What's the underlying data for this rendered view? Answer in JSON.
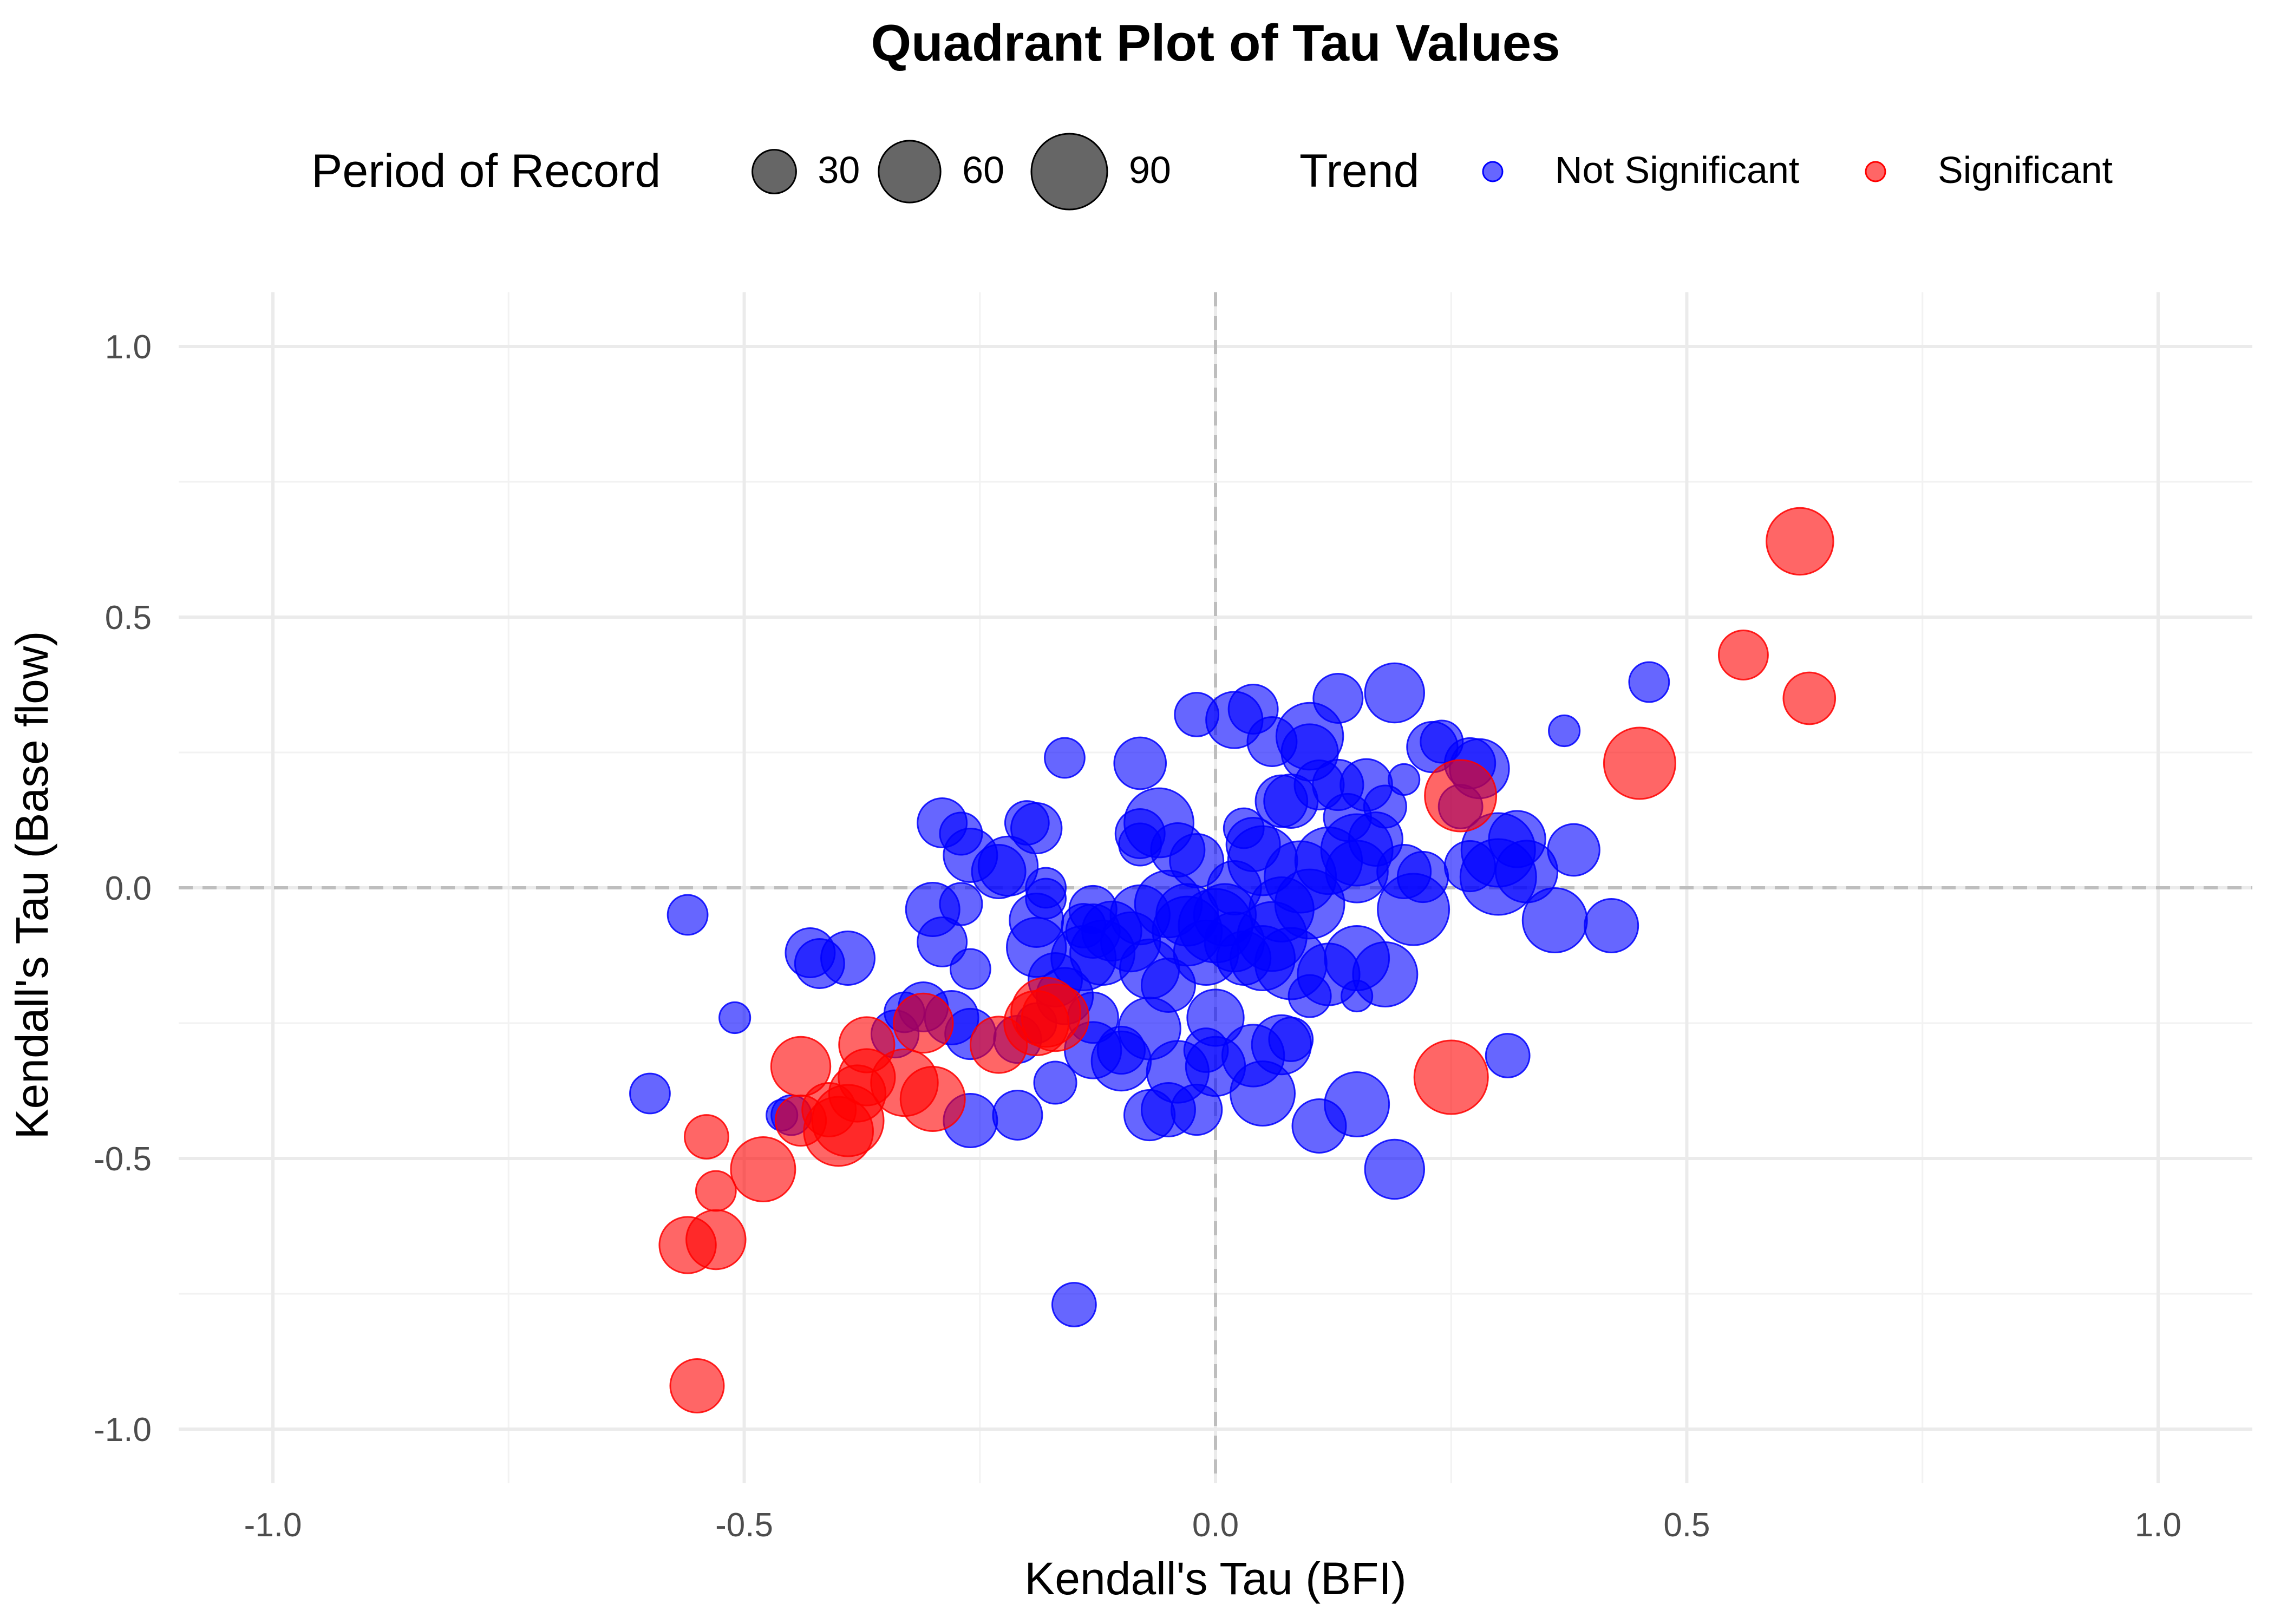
{
  "chart_data": {
    "type": "scatter",
    "title": "Quadrant Plot of Tau Values",
    "xlabel": "Kendall's Tau (BFI)",
    "ylabel": "Kendall's Tau (Base flow)",
    "xlim": [
      -1.1,
      1.1
    ],
    "ylim": [
      -1.1,
      1.1
    ],
    "x_ticks": [
      -1.0,
      -0.5,
      0.0,
      0.5,
      1.0
    ],
    "y_ticks": [
      -1.0,
      -0.5,
      0.0,
      0.5,
      1.0
    ],
    "x_tick_labels": [
      "-1.0",
      "-0.5",
      "0.0",
      "0.5",
      "1.0"
    ],
    "y_tick_labels": [
      "-1.0",
      "-0.5",
      "0.0",
      "0.5",
      "1.0"
    ],
    "reference_lines": {
      "x": 0.0,
      "y": 0.0,
      "style": "dashed"
    },
    "grid": true,
    "legend_position": "top",
    "size_legend": {
      "title": "Period of Record",
      "values": [
        30,
        60,
        90
      ],
      "labels": [
        "30",
        "60",
        "90"
      ]
    },
    "color_legend": {
      "title": "Trend",
      "entries": [
        {
          "label": "Not Significant",
          "color": "#0000ff"
        },
        {
          "label": "Significant",
          "color": "#ff0000"
        }
      ]
    },
    "point_opacity": 0.6,
    "series": [
      {
        "name": "Not Significant",
        "color": "#0000ff",
        "points": [
          {
            "x": -0.6,
            "y": -0.38,
            "size": 25
          },
          {
            "x": -0.56,
            "y": -0.05,
            "size": 25
          },
          {
            "x": -0.51,
            "y": -0.24,
            "size": 15
          },
          {
            "x": -0.46,
            "y": -0.42,
            "size": 15
          },
          {
            "x": -0.45,
            "y": -0.42,
            "size": 25
          },
          {
            "x": -0.43,
            "y": -0.12,
            "size": 38
          },
          {
            "x": -0.42,
            "y": -0.14,
            "size": 38
          },
          {
            "x": -0.39,
            "y": -0.13,
            "size": 45
          },
          {
            "x": -0.34,
            "y": -0.27,
            "size": 35
          },
          {
            "x": -0.33,
            "y": -0.23,
            "size": 25
          },
          {
            "x": -0.31,
            "y": -0.22,
            "size": 38
          },
          {
            "x": -0.3,
            "y": -0.04,
            "size": 45
          },
          {
            "x": -0.29,
            "y": -0.1,
            "size": 38
          },
          {
            "x": -0.28,
            "y": -0.24,
            "size": 45
          },
          {
            "x": -0.27,
            "y": -0.03,
            "size": 28
          },
          {
            "x": -0.29,
            "y": 0.12,
            "size": 38
          },
          {
            "x": -0.27,
            "y": 0.1,
            "size": 28
          },
          {
            "x": -0.26,
            "y": 0.06,
            "size": 45
          },
          {
            "x": -0.26,
            "y": -0.27,
            "size": 40
          },
          {
            "x": -0.26,
            "y": -0.43,
            "size": 45
          },
          {
            "x": -0.26,
            "y": -0.15,
            "size": 25
          },
          {
            "x": -0.23,
            "y": 0.03,
            "size": 45
          },
          {
            "x": -0.22,
            "y": 0.04,
            "size": 55
          },
          {
            "x": -0.21,
            "y": -0.28,
            "size": 35
          },
          {
            "x": -0.21,
            "y": -0.42,
            "size": 38
          },
          {
            "x": -0.2,
            "y": 0.12,
            "size": 30
          },
          {
            "x": -0.19,
            "y": 0.11,
            "size": 40
          },
          {
            "x": -0.19,
            "y": -0.06,
            "size": 45
          },
          {
            "x": -0.19,
            "y": -0.11,
            "size": 55
          },
          {
            "x": -0.19,
            "y": -0.25,
            "size": 25
          },
          {
            "x": -0.18,
            "y": 0.0,
            "size": 25
          },
          {
            "x": -0.18,
            "y": -0.02,
            "size": 25
          },
          {
            "x": -0.17,
            "y": -0.17,
            "size": 45
          },
          {
            "x": -0.17,
            "y": -0.36,
            "size": 28
          },
          {
            "x": -0.16,
            "y": 0.24,
            "size": 25
          },
          {
            "x": -0.16,
            "y": -0.2,
            "size": 50
          },
          {
            "x": -0.15,
            "y": -0.77,
            "size": 30
          },
          {
            "x": -0.14,
            "y": -0.07,
            "size": 30
          },
          {
            "x": -0.14,
            "y": -0.13,
            "size": 65
          },
          {
            "x": -0.13,
            "y": -0.04,
            "size": 35
          },
          {
            "x": -0.13,
            "y": -0.08,
            "size": 45
          },
          {
            "x": -0.13,
            "y": -0.24,
            "size": 40
          },
          {
            "x": -0.13,
            "y": -0.3,
            "size": 50
          },
          {
            "x": -0.12,
            "y": -0.12,
            "size": 65
          },
          {
            "x": -0.11,
            "y": -0.08,
            "size": 55
          },
          {
            "x": -0.1,
            "y": -0.32,
            "size": 55
          },
          {
            "x": -0.1,
            "y": -0.3,
            "size": 35
          },
          {
            "x": -0.09,
            "y": -0.1,
            "size": 55
          },
          {
            "x": -0.08,
            "y": -0.05,
            "size": 55
          },
          {
            "x": -0.08,
            "y": 0.23,
            "size": 42
          },
          {
            "x": -0.08,
            "y": 0.1,
            "size": 38
          },
          {
            "x": -0.08,
            "y": 0.08,
            "size": 28
          },
          {
            "x": -0.07,
            "y": -0.15,
            "size": 55
          },
          {
            "x": -0.07,
            "y": -0.26,
            "size": 60
          },
          {
            "x": -0.07,
            "y": -0.42,
            "size": 40
          },
          {
            "x": -0.06,
            "y": 0.12,
            "size": 75
          },
          {
            "x": -0.05,
            "y": -0.03,
            "size": 70
          },
          {
            "x": -0.05,
            "y": -0.18,
            "size": 45
          },
          {
            "x": -0.05,
            "y": -0.41,
            "size": 45
          },
          {
            "x": -0.04,
            "y": -0.34,
            "size": 60
          },
          {
            "x": -0.04,
            "y": 0.07,
            "size": 45
          },
          {
            "x": -0.03,
            "y": -0.08,
            "size": 75
          },
          {
            "x": -0.03,
            "y": -0.05,
            "size": 60
          },
          {
            "x": -0.02,
            "y": 0.05,
            "size": 45
          },
          {
            "x": -0.02,
            "y": 0.32,
            "size": 30
          },
          {
            "x": -0.02,
            "y": -0.41,
            "size": 40
          },
          {
            "x": -0.01,
            "y": -0.3,
            "size": 30
          },
          {
            "x": -0.01,
            "y": -0.12,
            "size": 65
          },
          {
            "x": 0.0,
            "y": -0.24,
            "size": 50
          },
          {
            "x": 0.0,
            "y": -0.33,
            "size": 55
          },
          {
            "x": 0.0,
            "y": -0.07,
            "size": 85
          },
          {
            "x": 0.01,
            "y": -0.05,
            "size": 60
          },
          {
            "x": 0.02,
            "y": 0.31,
            "size": 50
          },
          {
            "x": 0.02,
            "y": 0.0,
            "size": 45
          },
          {
            "x": 0.02,
            "y": -0.1,
            "size": 55
          },
          {
            "x": 0.03,
            "y": 0.11,
            "size": 25
          },
          {
            "x": 0.03,
            "y": -0.13,
            "size": 45
          },
          {
            "x": 0.04,
            "y": 0.33,
            "size": 38
          },
          {
            "x": 0.04,
            "y": 0.08,
            "size": 45
          },
          {
            "x": 0.04,
            "y": -0.31,
            "size": 60
          },
          {
            "x": 0.05,
            "y": 0.05,
            "size": 75
          },
          {
            "x": 0.05,
            "y": -0.13,
            "size": 65
          },
          {
            "x": 0.05,
            "y": -0.38,
            "size": 65
          },
          {
            "x": 0.06,
            "y": -0.09,
            "size": 75
          },
          {
            "x": 0.06,
            "y": 0.27,
            "size": 38
          },
          {
            "x": 0.07,
            "y": 0.16,
            "size": 42
          },
          {
            "x": 0.07,
            "y": -0.04,
            "size": 65
          },
          {
            "x": 0.07,
            "y": -0.29,
            "size": 55
          },
          {
            "x": 0.08,
            "y": 0.16,
            "size": 45
          },
          {
            "x": 0.08,
            "y": -0.14,
            "size": 80
          },
          {
            "x": 0.08,
            "y": -0.28,
            "size": 30
          },
          {
            "x": 0.09,
            "y": 0.02,
            "size": 80
          },
          {
            "x": 0.1,
            "y": 0.28,
            "size": 70
          },
          {
            "x": 0.1,
            "y": 0.25,
            "size": 50
          },
          {
            "x": 0.1,
            "y": -0.03,
            "size": 75
          },
          {
            "x": 0.1,
            "y": -0.2,
            "size": 28
          },
          {
            "x": 0.11,
            "y": -0.44,
            "size": 45
          },
          {
            "x": 0.11,
            "y": 0.19,
            "size": 38
          },
          {
            "x": 0.12,
            "y": 0.05,
            "size": 70
          },
          {
            "x": 0.12,
            "y": -0.16,
            "size": 60
          },
          {
            "x": 0.13,
            "y": 0.35,
            "size": 38
          },
          {
            "x": 0.13,
            "y": 0.19,
            "size": 40
          },
          {
            "x": 0.14,
            "y": 0.13,
            "size": 35
          },
          {
            "x": 0.15,
            "y": 0.07,
            "size": 80
          },
          {
            "x": 0.15,
            "y": 0.03,
            "size": 60
          },
          {
            "x": 0.15,
            "y": -0.4,
            "size": 65
          },
          {
            "x": 0.15,
            "y": -0.13,
            "size": 65
          },
          {
            "x": 0.15,
            "y": -0.2,
            "size": 15
          },
          {
            "x": 0.16,
            "y": 0.19,
            "size": 42
          },
          {
            "x": 0.17,
            "y": 0.09,
            "size": 45
          },
          {
            "x": 0.18,
            "y": -0.16,
            "size": 65
          },
          {
            "x": 0.18,
            "y": 0.15,
            "size": 28
          },
          {
            "x": 0.19,
            "y": -0.52,
            "size": 55
          },
          {
            "x": 0.19,
            "y": 0.36,
            "size": 55
          },
          {
            "x": 0.2,
            "y": 0.2,
            "size": 15
          },
          {
            "x": 0.2,
            "y": 0.03,
            "size": 45
          },
          {
            "x": 0.21,
            "y": -0.04,
            "size": 80
          },
          {
            "x": 0.22,
            "y": 0.02,
            "size": 40
          },
          {
            "x": 0.23,
            "y": 0.26,
            "size": 40
          },
          {
            "x": 0.24,
            "y": 0.27,
            "size": 28
          },
          {
            "x": 0.26,
            "y": 0.15,
            "size": 30
          },
          {
            "x": 0.27,
            "y": 0.23,
            "size": 40
          },
          {
            "x": 0.27,
            "y": 0.04,
            "size": 40
          },
          {
            "x": 0.28,
            "y": 0.22,
            "size": 55
          },
          {
            "x": 0.3,
            "y": 0.07,
            "size": 85
          },
          {
            "x": 0.3,
            "y": 0.02,
            "size": 90
          },
          {
            "x": 0.31,
            "y": -0.31,
            "size": 30
          },
          {
            "x": 0.32,
            "y": 0.09,
            "size": 50
          },
          {
            "x": 0.33,
            "y": 0.03,
            "size": 60
          },
          {
            "x": 0.36,
            "y": -0.06,
            "size": 65
          },
          {
            "x": 0.37,
            "y": 0.29,
            "size": 15
          },
          {
            "x": 0.38,
            "y": 0.07,
            "size": 42
          },
          {
            "x": 0.42,
            "y": -0.07,
            "size": 45
          },
          {
            "x": 0.46,
            "y": 0.38,
            "size": 25
          }
        ]
      },
      {
        "name": "Significant",
        "color": "#ff0000",
        "points": [
          {
            "x": -0.56,
            "y": -0.66,
            "size": 50
          },
          {
            "x": -0.55,
            "y": -0.92,
            "size": 45
          },
          {
            "x": -0.54,
            "y": -0.46,
            "size": 30
          },
          {
            "x": -0.53,
            "y": -0.65,
            "size": 55
          },
          {
            "x": -0.53,
            "y": -0.56,
            "size": 25
          },
          {
            "x": -0.48,
            "y": -0.52,
            "size": 65
          },
          {
            "x": -0.44,
            "y": -0.43,
            "size": 40
          },
          {
            "x": -0.44,
            "y": -0.33,
            "size": 55
          },
          {
            "x": -0.41,
            "y": -0.41,
            "size": 45
          },
          {
            "x": -0.4,
            "y": -0.45,
            "size": 75
          },
          {
            "x": -0.39,
            "y": -0.43,
            "size": 80
          },
          {
            "x": -0.38,
            "y": -0.38,
            "size": 50
          },
          {
            "x": -0.37,
            "y": -0.35,
            "size": 50
          },
          {
            "x": -0.37,
            "y": -0.29,
            "size": 48
          },
          {
            "x": -0.33,
            "y": -0.36,
            "size": 70
          },
          {
            "x": -0.31,
            "y": -0.25,
            "size": 55
          },
          {
            "x": -0.3,
            "y": -0.39,
            "size": 65
          },
          {
            "x": -0.23,
            "y": -0.29,
            "size": 50
          },
          {
            "x": -0.19,
            "y": -0.25,
            "size": 65
          },
          {
            "x": -0.18,
            "y": -0.23,
            "size": 75
          },
          {
            "x": -0.17,
            "y": -0.24,
            "size": 70
          },
          {
            "x": 0.25,
            "y": -0.35,
            "size": 85
          },
          {
            "x": 0.26,
            "y": 0.17,
            "size": 80
          },
          {
            "x": 0.45,
            "y": 0.23,
            "size": 80
          },
          {
            "x": 0.56,
            "y": 0.43,
            "size": 38
          },
          {
            "x": 0.62,
            "y": 0.64,
            "size": 70
          },
          {
            "x": 0.63,
            "y": 0.35,
            "size": 42
          }
        ]
      }
    ]
  }
}
